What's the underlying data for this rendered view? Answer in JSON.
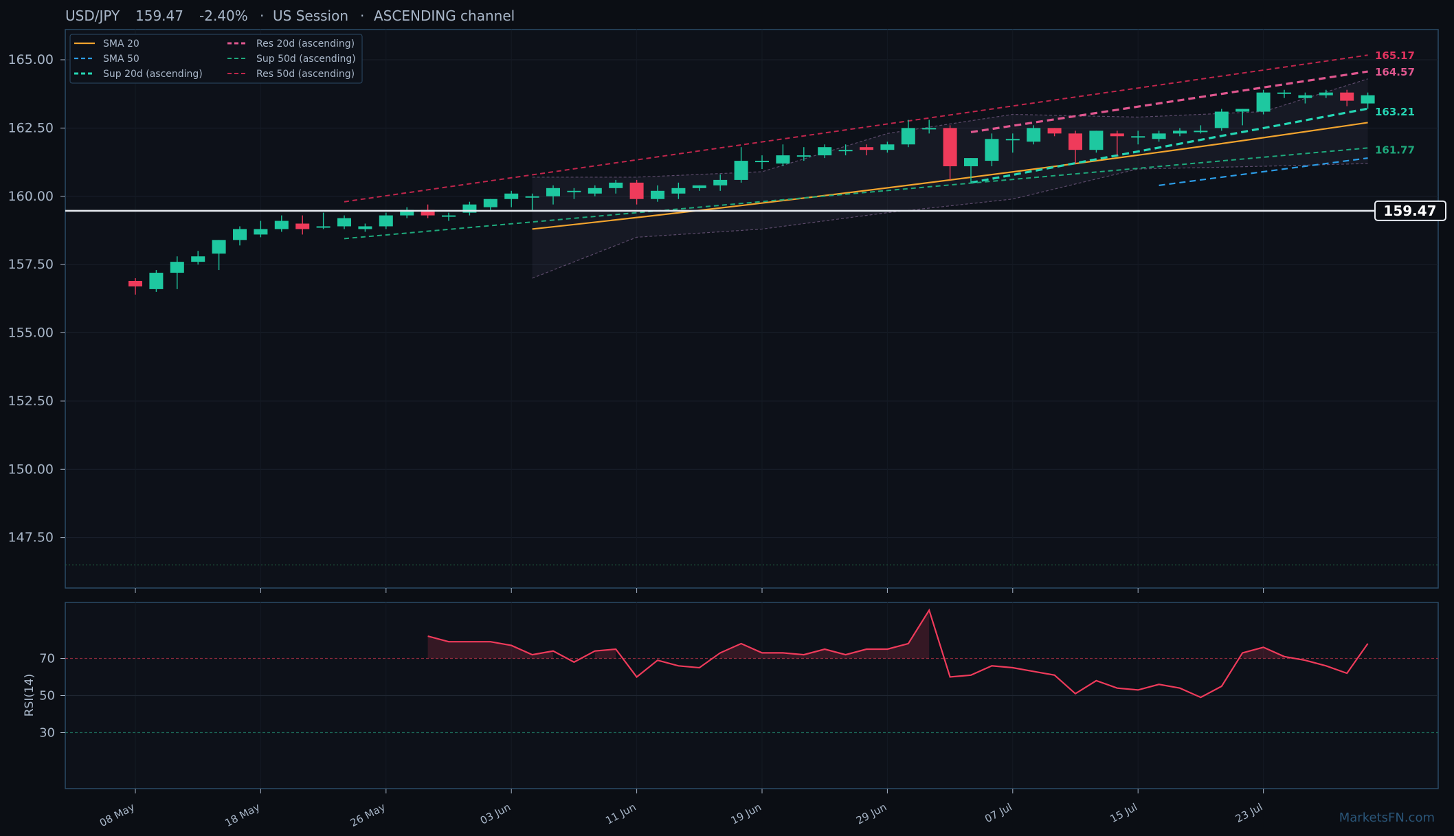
{
  "header": {
    "symbol": "USD/JPY",
    "price": "159.47",
    "change": "-2.40%",
    "session": "US Session",
    "channel": "ASCENDING channel",
    "sep": "·"
  },
  "watermark": "MarketsFN.com",
  "colors": {
    "bg": "#0b0e14",
    "panel": "#0d1119",
    "frame": "#2b4a66",
    "up": "#1ec8a0",
    "down": "#ef3b5b",
    "sma20": "#f3a42e",
    "sma50": "#2c9ce6",
    "sup20": "#25d6b4",
    "res20": "#e0578f",
    "sup50": "#1ea97c",
    "res50": "#c0264c",
    "rsi": "#ef3b5b",
    "text": "#a8b6c8"
  },
  "chart_data": [
    {
      "type": "candlestick",
      "ylim": [
        146.0,
        166.0
      ],
      "ylabel": "",
      "yticks": [
        "165.00",
        "162.50",
        "160.00",
        "157.50",
        "155.00",
        "152.50",
        "150.00",
        "147.50"
      ],
      "ytick_values": [
        165,
        162.5,
        160,
        157.5,
        155,
        152.5,
        150,
        147.5
      ],
      "xticks": [
        {
          "label": "08 May",
          "i": 0
        },
        {
          "label": "18 May",
          "i": 6
        },
        {
          "label": "26 May",
          "i": 12
        },
        {
          "label": "03 Jun",
          "i": 18
        },
        {
          "label": "11 Jun",
          "i": 24
        },
        {
          "label": "19 Jun",
          "i": 30
        },
        {
          "label": "29 Jun",
          "i": 36
        },
        {
          "label": "07 Jul",
          "i": 42
        },
        {
          "label": "15 Jul",
          "i": 48
        },
        {
          "label": "23 Jul",
          "i": 54
        }
      ],
      "candles": [
        [
          156.9,
          157.0,
          156.4,
          156.7
        ],
        [
          156.6,
          157.3,
          156.5,
          157.2
        ],
        [
          157.2,
          157.8,
          156.6,
          157.6
        ],
        [
          157.6,
          158.0,
          157.5,
          157.8
        ],
        [
          157.9,
          158.4,
          157.3,
          158.4
        ],
        [
          158.4,
          158.9,
          158.2,
          158.8
        ],
        [
          158.6,
          159.1,
          158.5,
          158.8
        ],
        [
          158.8,
          159.3,
          158.7,
          159.1
        ],
        [
          159.0,
          159.3,
          158.6,
          158.8
        ],
        [
          158.9,
          159.4,
          158.8,
          158.9
        ],
        [
          158.9,
          159.3,
          158.8,
          159.2
        ],
        [
          158.8,
          159.0,
          158.7,
          158.9
        ],
        [
          158.9,
          159.4,
          158.8,
          159.3
        ],
        [
          159.3,
          159.6,
          159.2,
          159.5
        ],
        [
          159.5,
          159.7,
          159.2,
          159.3
        ],
        [
          159.3,
          159.4,
          159.1,
          159.3
        ],
        [
          159.4,
          159.8,
          159.3,
          159.7
        ],
        [
          159.6,
          159.9,
          159.5,
          159.9
        ],
        [
          159.9,
          160.2,
          159.6,
          160.1
        ],
        [
          160.0,
          160.1,
          159.5,
          160.0
        ],
        [
          160.0,
          160.4,
          159.7,
          160.3
        ],
        [
          160.2,
          160.3,
          159.9,
          160.2
        ],
        [
          160.1,
          160.4,
          160.0,
          160.3
        ],
        [
          160.3,
          160.6,
          160.1,
          160.5
        ],
        [
          160.5,
          160.6,
          159.7,
          159.9
        ],
        [
          159.9,
          160.4,
          159.8,
          160.2
        ],
        [
          160.1,
          160.5,
          159.9,
          160.3
        ],
        [
          160.3,
          160.4,
          160.2,
          160.4
        ],
        [
          160.4,
          160.8,
          160.2,
          160.6
        ],
        [
          160.6,
          161.8,
          160.5,
          161.3
        ],
        [
          161.3,
          161.5,
          161.0,
          161.3
        ],
        [
          161.2,
          161.9,
          161.1,
          161.5
        ],
        [
          161.5,
          161.8,
          161.3,
          161.5
        ],
        [
          161.5,
          161.9,
          161.4,
          161.8
        ],
        [
          161.7,
          161.9,
          161.5,
          161.7
        ],
        [
          161.8,
          161.9,
          161.5,
          161.7
        ],
        [
          161.7,
          162.0,
          161.6,
          161.9
        ],
        [
          161.9,
          162.8,
          161.8,
          162.5
        ],
        [
          162.5,
          162.8,
          162.3,
          162.5
        ],
        [
          162.5,
          162.6,
          160.6,
          161.1
        ],
        [
          161.1,
          161.4,
          160.5,
          161.4
        ],
        [
          161.3,
          162.3,
          161.1,
          162.1
        ],
        [
          162.1,
          162.3,
          161.6,
          162.1
        ],
        [
          162.0,
          162.6,
          161.9,
          162.5
        ],
        [
          162.5,
          162.5,
          162.2,
          162.3
        ],
        [
          162.3,
          162.4,
          161.2,
          161.7
        ],
        [
          161.7,
          162.4,
          161.6,
          162.4
        ],
        [
          162.3,
          162.4,
          161.5,
          162.2
        ],
        [
          162.2,
          162.4,
          161.9,
          162.2
        ],
        [
          162.1,
          162.4,
          162.0,
          162.3
        ],
        [
          162.3,
          162.5,
          162.2,
          162.4
        ],
        [
          162.4,
          162.6,
          162.3,
          162.4
        ],
        [
          162.5,
          163.2,
          162.4,
          163.1
        ],
        [
          163.1,
          163.2,
          162.6,
          163.2
        ],
        [
          163.1,
          163.9,
          163.0,
          163.8
        ],
        [
          163.8,
          163.9,
          163.6,
          163.8
        ],
        [
          163.6,
          163.8,
          163.4,
          163.7
        ],
        [
          163.7,
          163.9,
          163.6,
          163.8
        ],
        [
          163.8,
          163.9,
          163.3,
          163.5
        ],
        [
          163.4,
          163.8,
          163.2,
          163.7
        ]
      ],
      "current_price": 159.47,
      "current_price_label": "159.47",
      "bottom_guide": 146.5,
      "series": [
        {
          "name": "SMA 20",
          "style": "solid",
          "x": [
            19,
            59
          ],
          "y": [
            158.8,
            162.7
          ],
          "shape": "curve"
        },
        {
          "name": "SMA 50",
          "style": "dash",
          "x": [
            49,
            59
          ],
          "y": [
            160.4,
            161.4
          ]
        },
        {
          "name": "Sup 20d (ascending)",
          "style": "dash-thick",
          "x": [
            40,
            59
          ],
          "y": [
            160.5,
            163.21
          ]
        },
        {
          "name": "Res 20d (ascending)",
          "style": "dash-thick",
          "x": [
            40,
            59
          ],
          "y": [
            162.35,
            164.57
          ]
        },
        {
          "name": "Sup 50d (ascending)",
          "style": "dash",
          "x": [
            10,
            59
          ],
          "y": [
            158.45,
            161.77
          ]
        },
        {
          "name": "Res 50d (ascending)",
          "style": "dash",
          "x": [
            10,
            59
          ],
          "y": [
            159.8,
            165.17
          ]
        }
      ],
      "bands": {
        "x": [
          19,
          24,
          30,
          36,
          42,
          48,
          54,
          59
        ],
        "upper": [
          160.7,
          160.7,
          160.9,
          162.3,
          163.0,
          162.9,
          163.1,
          164.3
        ],
        "lower": [
          157.0,
          158.5,
          158.8,
          159.4,
          159.9,
          161.0,
          161.1,
          161.2
        ]
      },
      "right_labels": [
        {
          "text": "165.17",
          "value": 165.17,
          "series": "Res 50d (ascending)"
        },
        {
          "text": "164.57",
          "value": 164.57,
          "series": "Res 20d (ascending)"
        },
        {
          "text": "163.21",
          "value": 163.21,
          "series": "Sup 20d (ascending)"
        },
        {
          "text": "161.77",
          "value": 161.77,
          "series": "Sup 50d (ascending)"
        }
      ]
    },
    {
      "type": "line",
      "ylabel": "RSI(14)",
      "ylim": [
        0,
        100
      ],
      "yticks": [
        "70",
        "50",
        "30"
      ],
      "ytick_values": [
        70,
        50,
        30
      ],
      "overbought": 70,
      "oversold": 30,
      "x_start": 14,
      "values": [
        82,
        79,
        79,
        79,
        77,
        72,
        74,
        68,
        74,
        75,
        60,
        69,
        66,
        65,
        73,
        78,
        73,
        73,
        72,
        75,
        72,
        75,
        75,
        78,
        96,
        60,
        61,
        66,
        65,
        63,
        61,
        51,
        58,
        54,
        53,
        56,
        54,
        49,
        55,
        73,
        76,
        71,
        69,
        66,
        62,
        78
      ]
    }
  ]
}
